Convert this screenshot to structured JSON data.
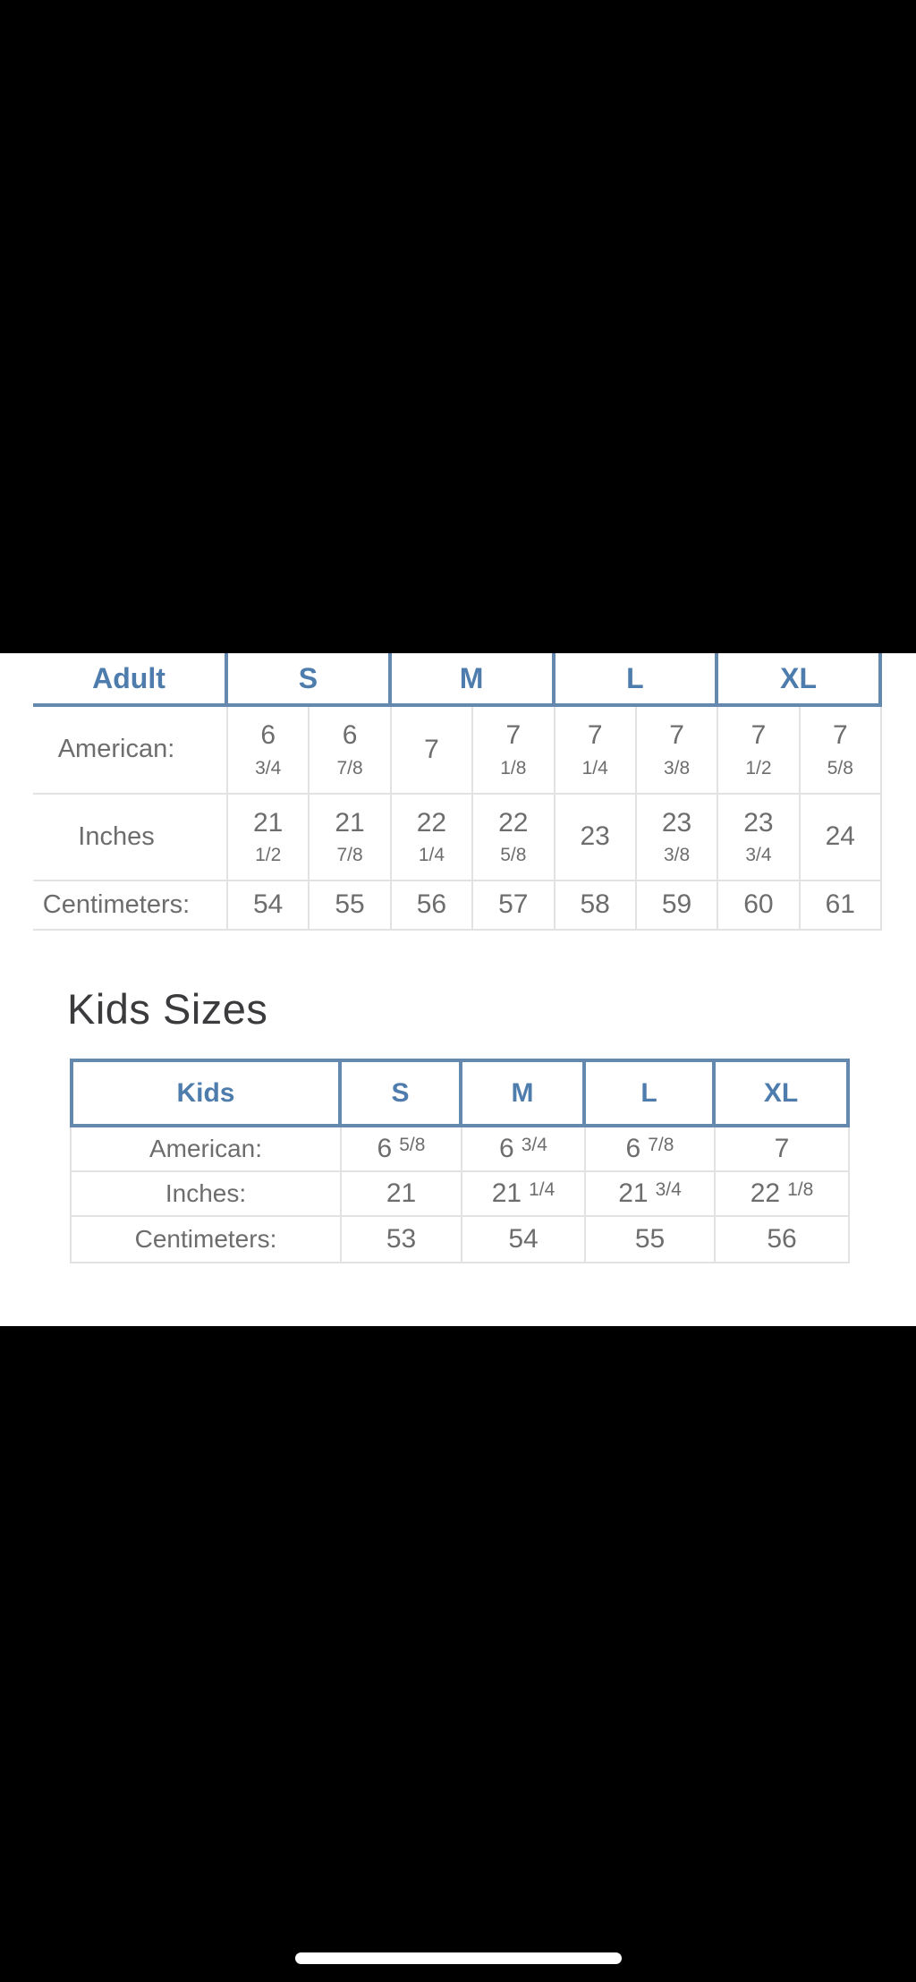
{
  "colors": {
    "background": "#000000",
    "content_background": "#ffffff",
    "header_text_blue": "#4e7dad",
    "border_blue": "#6589ae",
    "body_text_gray": "#6d6d6d",
    "separator_gray": "#e2e2e2",
    "heading_dark": "#3b3b3d"
  },
  "adult_table": {
    "header": [
      "Adult",
      "S",
      "M",
      "L",
      "XL"
    ],
    "rows": [
      {
        "label": "American:",
        "cells": [
          {
            "main": "6",
            "frac": "3/4"
          },
          {
            "main": "6",
            "frac": "7/8"
          },
          {
            "main": "7",
            "frac": ""
          },
          {
            "main": "7",
            "frac": "1/8"
          },
          {
            "main": "7",
            "frac": "1/4"
          },
          {
            "main": "7",
            "frac": "3/8"
          },
          {
            "main": "7",
            "frac": "1/2"
          },
          {
            "main": "7",
            "frac": "5/8"
          }
        ]
      },
      {
        "label": "Inches",
        "cells": [
          {
            "main": "21",
            "frac": "1/2"
          },
          {
            "main": "21",
            "frac": "7/8"
          },
          {
            "main": "22",
            "frac": "1/4"
          },
          {
            "main": "22",
            "frac": "5/8"
          },
          {
            "main": "23",
            "frac": ""
          },
          {
            "main": "23",
            "frac": "3/8"
          },
          {
            "main": "23",
            "frac": "3/4"
          },
          {
            "main": "24",
            "frac": ""
          }
        ]
      },
      {
        "label": "Centimeters:",
        "cells": [
          {
            "main": "54",
            "frac": ""
          },
          {
            "main": "55",
            "frac": ""
          },
          {
            "main": "56",
            "frac": ""
          },
          {
            "main": "57",
            "frac": ""
          },
          {
            "main": "58",
            "frac": ""
          },
          {
            "main": "59",
            "frac": ""
          },
          {
            "main": "60",
            "frac": ""
          },
          {
            "main": "61",
            "frac": ""
          }
        ]
      }
    ]
  },
  "kids_section": {
    "heading": "Kids Sizes"
  },
  "kids_table": {
    "header": [
      "Kids",
      "S",
      "M",
      "L",
      "XL"
    ],
    "rows": [
      {
        "label": "American:",
        "cells": [
          {
            "main": "6",
            "frac": "5/8"
          },
          {
            "main": "6",
            "frac": "3/4"
          },
          {
            "main": "6",
            "frac": "7/8"
          },
          {
            "main": "7",
            "frac": ""
          }
        ]
      },
      {
        "label": "Inches:",
        "cells": [
          {
            "main": "21",
            "frac": ""
          },
          {
            "main": "21",
            "frac": "1/4"
          },
          {
            "main": "21",
            "frac": "3/4"
          },
          {
            "main": "22",
            "frac": "1/8"
          }
        ]
      },
      {
        "label": "Centimeters:",
        "cells": [
          {
            "main": "53",
            "frac": ""
          },
          {
            "main": "54",
            "frac": ""
          },
          {
            "main": "55",
            "frac": ""
          },
          {
            "main": "56",
            "frac": ""
          }
        ]
      }
    ]
  }
}
